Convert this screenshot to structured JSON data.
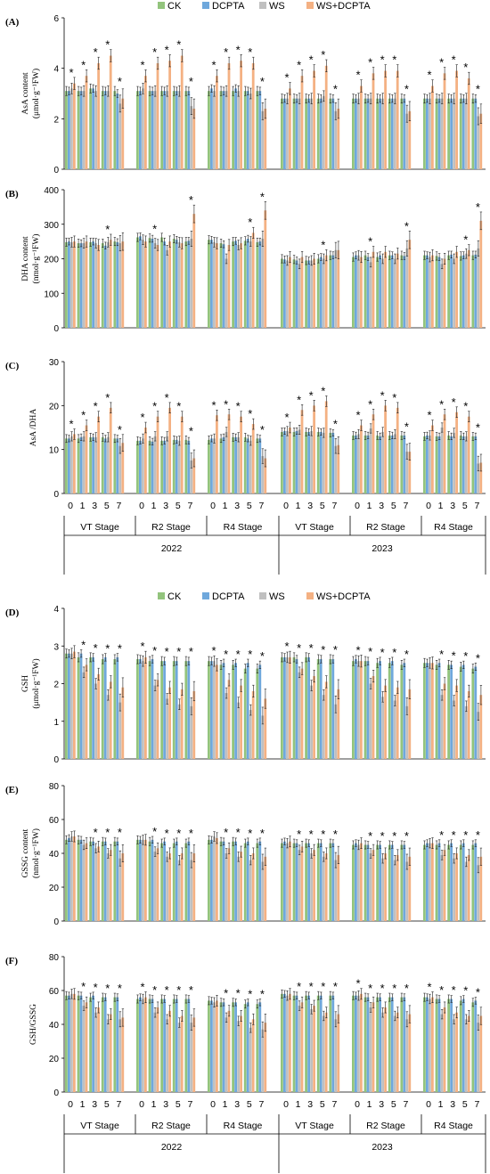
{
  "legend": {
    "labels": [
      "CK",
      "DCPTA",
      "WS",
      "WS+DCPTA"
    ],
    "colors": [
      "#93c47d",
      "#6fa8dc",
      "#c0c0c0",
      "#f4b183"
    ]
  },
  "x_axis": {
    "days": [
      "0",
      "1",
      "3",
      "5",
      "7"
    ],
    "stages": [
      "VT Stage",
      "R2 Stage",
      "R4 Stage",
      "VT Stage",
      "R2 Stage",
      "R4 Stage"
    ],
    "years": [
      "2022",
      "2023"
    ]
  },
  "chart_data": [
    {
      "type": "bar",
      "panel": "(A)",
      "ylabel": "AsA content",
      "ylabel_unit": "(μmol·g⁻¹FW)",
      "ylim": [
        0,
        6
      ],
      "yticks": [
        "0",
        "2",
        "4",
        "6"
      ],
      "series": [
        {
          "name": "CK",
          "values": [
            3.1,
            3.1,
            3.2,
            3.1,
            3.1,
            3.1,
            3.1,
            3.1,
            3.1,
            3.1,
            3.1,
            3.1,
            3.1,
            3.1,
            3.1,
            2.8,
            2.8,
            2.8,
            2.8,
            2.8,
            2.8,
            2.8,
            2.8,
            2.8,
            2.8,
            2.8,
            2.8,
            2.8,
            2.8,
            2.8
          ]
        },
        {
          "name": "DCPTA",
          "values": [
            3.1,
            3.1,
            3.2,
            3.1,
            3.0,
            3.1,
            3.1,
            3.1,
            3.1,
            3.1,
            3.2,
            3.1,
            3.2,
            3.1,
            3.1,
            2.8,
            2.8,
            2.8,
            2.8,
            2.8,
            2.8,
            2.8,
            2.8,
            2.8,
            2.8,
            2.8,
            2.8,
            2.8,
            2.8,
            2.8
          ]
        },
        {
          "name": "WS",
          "values": [
            3.2,
            3.1,
            3.1,
            3.1,
            2.6,
            3.2,
            3.1,
            3.1,
            3.1,
            2.5,
            3.1,
            3.1,
            3.1,
            3.0,
            2.3,
            2.8,
            2.8,
            2.8,
            2.9,
            2.3,
            2.8,
            2.8,
            2.8,
            2.8,
            2.2,
            2.8,
            2.8,
            2.8,
            2.8,
            2.1
          ]
        },
        {
          "name": "WS+DCPTA",
          "values": [
            3.4,
            3.7,
            4.2,
            4.5,
            2.8,
            3.7,
            4.2,
            4.3,
            4.5,
            2.4,
            3.7,
            4.2,
            4.3,
            4.2,
            2.4,
            3.2,
            3.7,
            3.9,
            4.1,
            2.4,
            3.3,
            3.8,
            3.9,
            3.9,
            2.3,
            3.3,
            3.8,
            3.9,
            3.6,
            2.2
          ]
        }
      ],
      "significance": [
        1,
        1,
        1,
        1,
        1,
        1,
        1,
        1,
        1,
        1,
        1,
        1,
        1,
        1,
        1,
        1,
        1,
        1,
        1,
        1,
        1,
        1,
        1,
        1,
        1,
        1,
        1,
        1,
        1,
        1
      ]
    },
    {
      "type": "bar",
      "panel": "(B)",
      "ylabel": "DHA content",
      "ylabel_unit": "(nmol·g⁻¹FW)",
      "ylim": [
        0,
        400
      ],
      "yticks": [
        "0",
        "100",
        "200",
        "300",
        "400"
      ],
      "series": [
        {
          "name": "CK",
          "values": [
            248,
            245,
            248,
            245,
            250,
            262,
            260,
            262,
            258,
            250,
            255,
            245,
            250,
            252,
            248,
            200,
            198,
            195,
            200,
            210,
            205,
            210,
            205,
            210,
            210,
            210,
            208,
            210,
            208,
            210
          ]
        },
        {
          "name": "DCPTA",
          "values": [
            250,
            245,
            250,
            238,
            248,
            265,
            258,
            250,
            255,
            252,
            255,
            242,
            252,
            258,
            250,
            198,
            195,
            195,
            205,
            210,
            210,
            205,
            210,
            210,
            208,
            210,
            205,
            212,
            210,
            212
          ]
        },
        {
          "name": "WS",
          "values": [
            248,
            245,
            245,
            248,
            245,
            255,
            245,
            225,
            248,
            258,
            248,
            200,
            240,
            250,
            258,
            195,
            185,
            195,
            200,
            225,
            210,
            190,
            200,
            200,
            230,
            205,
            185,
            200,
            215,
            230
          ]
        },
        {
          "name": "WS+DCPTA",
          "values": [
            250,
            250,
            240,
            255,
            250,
            250,
            240,
            250,
            245,
            330,
            245,
            240,
            245,
            275,
            340,
            205,
            205,
            200,
            210,
            225,
            205,
            220,
            220,
            215,
            255,
            210,
            200,
            220,
            225,
            310
          ]
        }
      ],
      "significance": [
        0,
        0,
        0,
        1,
        0,
        0,
        1,
        0,
        0,
        1,
        0,
        0,
        0,
        1,
        1,
        0,
        0,
        0,
        1,
        0,
        0,
        1,
        0,
        0,
        1,
        0,
        0,
        0,
        1,
        1
      ]
    },
    {
      "type": "bar",
      "panel": "(C)",
      "ylabel": "AsA /DHA",
      "ylim": [
        0,
        30
      ],
      "yticks": [
        "0",
        "10",
        "20",
        "30"
      ],
      "series": [
        {
          "name": "CK",
          "values": [
            12.5,
            12.5,
            12.8,
            12.8,
            12.5,
            12.0,
            12.0,
            12.0,
            12.2,
            12.2,
            12.2,
            12.5,
            12.8,
            12.8,
            12.5,
            14.0,
            14.0,
            14.0,
            14.0,
            13.8,
            13.2,
            13.2,
            13.2,
            13.2,
            13.2,
            13.0,
            13.0,
            13.2,
            13.2,
            13.0
          ]
        },
        {
          "name": "DCPTA",
          "values": [
            12.5,
            12.8,
            12.8,
            12.5,
            12.5,
            12.0,
            11.8,
            12.0,
            12.2,
            12.0,
            12.5,
            12.8,
            12.8,
            12.5,
            12.5,
            14.2,
            14.2,
            14.0,
            14.0,
            13.8,
            13.2,
            13.2,
            13.0,
            13.2,
            13.2,
            13.2,
            13.0,
            13.0,
            13.0,
            13.0
          ]
        },
        {
          "name": "WS",
          "values": [
            13.0,
            13.0,
            12.8,
            12.8,
            10.8,
            12.5,
            13.0,
            13.0,
            12.0,
            7.5,
            12.5,
            14.0,
            12.8,
            12.0,
            8.5,
            14.2,
            14.5,
            14.2,
            13.8,
            10.8,
            13.5,
            14.8,
            14.0,
            13.5,
            9.5,
            13.2,
            15.0,
            13.8,
            13.0,
            6.8
          ]
        },
        {
          "name": "WS+DCPTA",
          "values": [
            13.5,
            15.5,
            17.5,
            19.5,
            11.5,
            15.0,
            17.5,
            19.5,
            17.5,
            8.0,
            17.8,
            18.0,
            17.5,
            15.8,
            8.0,
            15.0,
            19.0,
            20.0,
            21.0,
            11.0,
            15.5,
            18.0,
            20.0,
            19.5,
            9.5,
            15.5,
            18.0,
            18.5,
            17.5,
            7.0
          ]
        }
      ],
      "significance": [
        1,
        1,
        1,
        1,
        1,
        1,
        1,
        1,
        1,
        1,
        1,
        1,
        1,
        1,
        1,
        1,
        1,
        1,
        1,
        1,
        1,
        1,
        1,
        1,
        1,
        1,
        1,
        1,
        1,
        1
      ]
    },
    {
      "type": "bar",
      "panel": "(D)",
      "ylabel": "GSH",
      "ylabel_unit": "(μmol·g⁻¹FW)",
      "ylim": [
        0,
        4
      ],
      "yticks": [
        "0",
        "1",
        "2",
        "3",
        "4"
      ],
      "series": [
        {
          "name": "CK",
          "values": [
            2.8,
            2.7,
            2.7,
            2.65,
            2.65,
            2.65,
            2.6,
            2.6,
            2.6,
            2.6,
            2.6,
            2.5,
            2.5,
            2.4,
            2.4,
            2.7,
            2.7,
            2.7,
            2.65,
            2.65,
            2.6,
            2.6,
            2.55,
            2.55,
            2.5,
            2.55,
            2.5,
            2.5,
            2.45,
            2.4
          ]
        },
        {
          "name": "DCPTA",
          "values": [
            2.8,
            2.8,
            2.7,
            2.7,
            2.7,
            2.65,
            2.65,
            2.6,
            2.6,
            2.6,
            2.6,
            2.55,
            2.55,
            2.55,
            2.5,
            2.7,
            2.65,
            2.7,
            2.65,
            2.65,
            2.65,
            2.6,
            2.6,
            2.6,
            2.55,
            2.55,
            2.55,
            2.5,
            2.5,
            2.45
          ]
        },
        {
          "name": "WS",
          "values": [
            2.8,
            2.3,
            2.0,
            1.7,
            1.5,
            2.6,
            1.95,
            1.6,
            1.45,
            1.4,
            2.6,
            1.75,
            1.5,
            1.3,
            1.15,
            2.7,
            2.3,
            1.95,
            1.7,
            1.45,
            2.6,
            2.0,
            1.65,
            1.55,
            1.4,
            2.55,
            1.7,
            1.55,
            1.4,
            1.25
          ]
        },
        {
          "name": "WS+DCPTA",
          "values": [
            2.85,
            2.5,
            2.25,
            2.05,
            1.9,
            2.7,
            2.1,
            1.9,
            1.85,
            1.8,
            2.5,
            2.1,
            1.95,
            1.8,
            1.6,
            2.7,
            2.4,
            2.2,
            2.05,
            1.85,
            2.6,
            2.2,
            1.95,
            1.9,
            1.85,
            2.55,
            2.0,
            1.95,
            1.8,
            1.7
          ]
        }
      ],
      "significance": [
        0,
        1,
        1,
        1,
        1,
        1,
        1,
        1,
        1,
        1,
        1,
        1,
        1,
        1,
        1,
        1,
        1,
        1,
        1,
        1,
        1,
        1,
        1,
        1,
        1,
        0,
        1,
        1,
        1,
        1
      ]
    },
    {
      "type": "bar",
      "panel": "(E)",
      "ylabel": "GSSG content",
      "ylabel_unit": "(nmol·g⁻¹FW)",
      "ylim": [
        0,
        80
      ],
      "yticks": [
        "0",
        "20",
        "40",
        "60",
        "80"
      ],
      "series": [
        {
          "name": "CK",
          "values": [
            48,
            48,
            47,
            47,
            47,
            48,
            47,
            46,
            46,
            46,
            48,
            47,
            47,
            46,
            46,
            46,
            46,
            46,
            46,
            46,
            45,
            45,
            45,
            45,
            45,
            45,
            45,
            45,
            45,
            45
          ]
        },
        {
          "name": "DCPTA",
          "values": [
            49,
            48,
            47,
            47,
            47,
            48,
            48,
            47,
            47,
            47,
            48,
            47,
            47,
            47,
            47,
            47,
            46,
            46,
            46,
            46,
            46,
            45,
            45,
            45,
            45,
            46,
            46,
            46,
            46,
            46
          ]
        },
        {
          "name": "WS",
          "values": [
            50,
            45,
            43,
            40,
            37,
            48,
            41,
            38,
            36,
            36,
            50,
            40,
            38,
            36,
            35,
            46,
            42,
            40,
            38,
            36,
            45,
            40,
            37,
            36,
            35,
            46,
            39,
            37,
            35,
            33
          ]
        },
        {
          "name": "WS+DCPTA",
          "values": [
            50,
            46,
            44,
            42,
            40,
            48,
            43,
            40,
            40,
            40,
            49,
            43,
            41,
            40,
            38,
            47,
            44,
            42,
            40,
            39,
            46,
            42,
            40,
            39,
            38,
            46,
            42,
            40,
            39,
            38
          ]
        }
      ],
      "significance": [
        0,
        0,
        1,
        1,
        1,
        0,
        1,
        1,
        1,
        1,
        0,
        1,
        1,
        1,
        1,
        0,
        1,
        1,
        1,
        1,
        0,
        1,
        1,
        1,
        1,
        0,
        1,
        1,
        1,
        1
      ]
    },
    {
      "type": "bar",
      "panel": "(F)",
      "ylabel": "GSH/GSSG",
      "ylim": [
        0,
        80
      ],
      "yticks": [
        "0",
        "20",
        "40",
        "60",
        "80"
      ],
      "series": [
        {
          "name": "CK",
          "values": [
            57,
            57,
            56,
            56,
            56,
            55,
            55,
            55,
            55,
            55,
            54,
            53,
            53,
            52,
            52,
            58,
            57,
            57,
            57,
            57,
            57,
            56,
            56,
            56,
            56,
            56,
            55,
            55,
            54,
            53
          ]
        },
        {
          "name": "DCPTA",
          "values": [
            57,
            57,
            57,
            56,
            56,
            56,
            55,
            55,
            55,
            55,
            54,
            53,
            53,
            53,
            53,
            58,
            57,
            57,
            57,
            57,
            57,
            56,
            56,
            56,
            56,
            56,
            55,
            55,
            55,
            54
          ]
        },
        {
          "name": "WS",
          "values": [
            58,
            51,
            47,
            43,
            43,
            55,
            47,
            43,
            41,
            41,
            53,
            44,
            42,
            38,
            37,
            57,
            51,
            49,
            45,
            43,
            57,
            50,
            47,
            45,
            43,
            55,
            46,
            43,
            43,
            41
          ]
        },
        {
          "name": "WS+DCPTA",
          "values": [
            58,
            53,
            50,
            46,
            44,
            56,
            50,
            48,
            45,
            44,
            54,
            48,
            45,
            43,
            41,
            58,
            53,
            51,
            47,
            46,
            58,
            53,
            50,
            47,
            46,
            56,
            50,
            47,
            45,
            45
          ]
        }
      ],
      "significance": [
        0,
        1,
        1,
        1,
        1,
        1,
        1,
        1,
        1,
        1,
        0,
        1,
        1,
        1,
        1,
        0,
        1,
        1,
        1,
        1,
        1,
        1,
        1,
        1,
        1,
        1,
        1,
        1,
        1,
        1
      ]
    }
  ]
}
